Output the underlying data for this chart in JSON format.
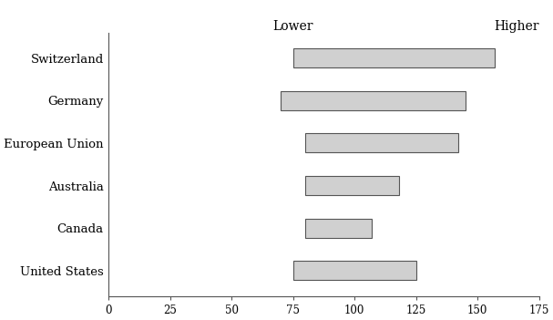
{
  "categories": [
    "Switzerland",
    "Germany",
    "European Union",
    "Australia",
    "Canada",
    "United States"
  ],
  "bar_starts": [
    75,
    70,
    80,
    80,
    80,
    75
  ],
  "bar_ends": [
    157,
    145,
    142,
    118,
    107,
    125
  ],
  "bar_color": "#d0d0d0",
  "bar_edgecolor": "#555555",
  "bar_linewidth": 0.8,
  "bar_height": 0.45,
  "xlim": [
    0,
    175
  ],
  "xticks": [
    0,
    25,
    50,
    75,
    100,
    125,
    150,
    175
  ],
  "xtick_fontsize": 8.5,
  "ytick_fontsize": 9.5,
  "label_lower": "Lower",
  "label_higher": "Higher",
  "label_fontsize": 10,
  "background_color": "#ffffff",
  "font_family": "serif",
  "figwidth": 6.07,
  "figheight": 3.51,
  "dpi": 100
}
